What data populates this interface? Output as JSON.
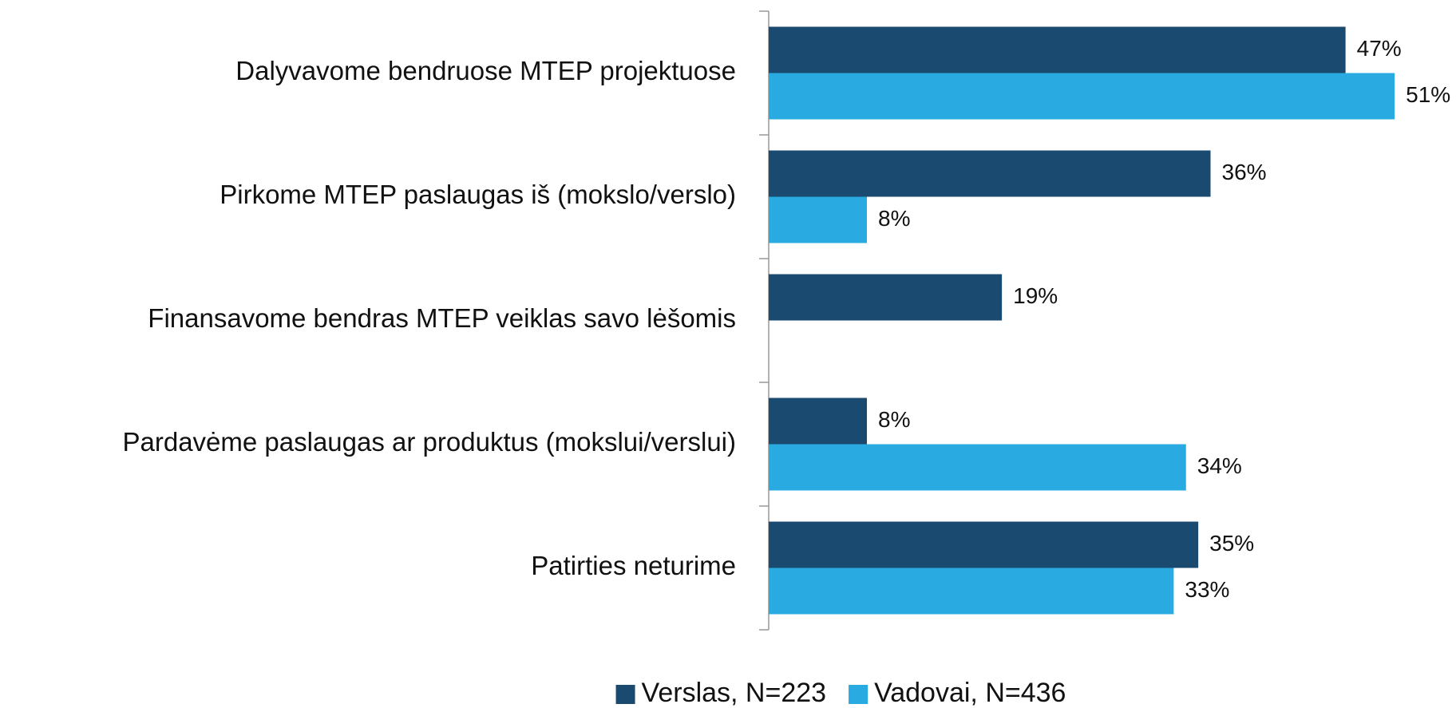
{
  "chart_data": {
    "type": "bar",
    "orientation": "horizontal",
    "categories": [
      "Dalyvavome bendruose MTEP projektuose",
      "Pirkome MTEP paslaugas iš (mokslo/verslo)",
      "Finansavome bendras MTEP veiklas savo lėšomis",
      "Pardavėme paslaugas ar produktus (mokslui/verslui)",
      "Patirties neturime"
    ],
    "series": [
      {
        "name": "Verslas, N=223",
        "color": "#1b4a70",
        "values": [
          47,
          36,
          19,
          8,
          35
        ],
        "value_labels": [
          "47%",
          "36%",
          "19%",
          "8%",
          "35%"
        ]
      },
      {
        "name": "Vadovai, N=436",
        "color": "#29abe2",
        "values": [
          51,
          8,
          null,
          34,
          33
        ],
        "value_labels": [
          "51%",
          "8%",
          null,
          "34%",
          "33%"
        ]
      }
    ],
    "xlim": [
      0,
      56
    ],
    "legend": "bottom"
  }
}
